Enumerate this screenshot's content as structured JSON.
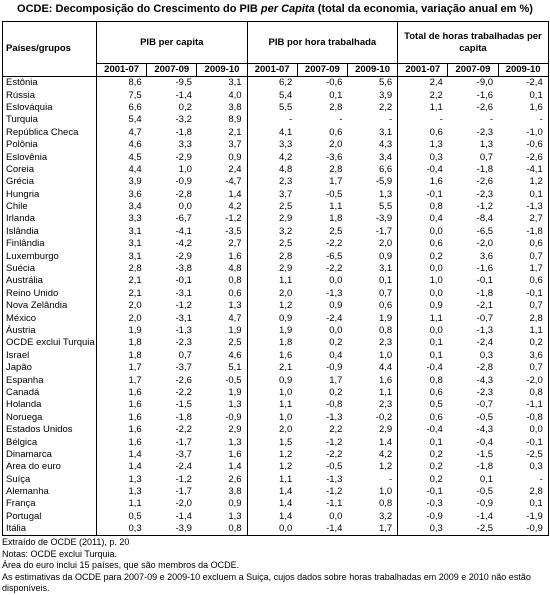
{
  "title": {
    "prefix": "OCDE: Decomposição do Crescimento do PIB",
    "italic": "per Capita",
    "suffix": "(total da economia, variação anual em %)"
  },
  "table": {
    "header": {
      "country": "Países/grupos",
      "groups": [
        "PIB per capita",
        "PIB por hora trabalhada",
        "Total de horas trabalhadas per capita"
      ]
    },
    "subheaders": [
      "2001-07",
      "2007-09",
      "2009-10",
      "2001-07",
      "2007-09",
      "2009-10",
      "2001-07",
      "2007-09",
      "2009-10"
    ],
    "rows": [
      [
        "Estônia",
        "8,6",
        "-9,5",
        "3,1",
        "6,2",
        "-0,6",
        "5,6",
        "2,4",
        "-9,0",
        "-2,4"
      ],
      [
        "Rússia",
        "7,5",
        "-1,4",
        "4,0",
        "5,4",
        "0,1",
        "3,9",
        "2,2",
        "-1,6",
        "0,1"
      ],
      [
        "Eslováquia",
        "6,6",
        "0,2",
        "3,8",
        "5,5",
        "2,8",
        "2,2",
        "1,1",
        "-2,6",
        "1,6"
      ],
      [
        "Turquia",
        "5,4",
        "-3,2",
        "8,9",
        "-",
        "-",
        "-",
        "-",
        "-",
        "-"
      ],
      [
        "República Checa",
        "4,7",
        "-1,8",
        "2,1",
        "4,1",
        "0,6",
        "3,1",
        "0,6",
        "-2,3",
        "-1,0"
      ],
      [
        "Polônia",
        "4,6",
        "3,3",
        "3,7",
        "3,3",
        "2,0",
        "4,3",
        "1,3",
        "1,3",
        "-0,6"
      ],
      [
        "Eslovênia",
        "4,5",
        "-2,9",
        "0,9",
        "4,2",
        "-3,6",
        "3,4",
        "0,3",
        "0,7",
        "-2,6"
      ],
      [
        "Coreia",
        "4,4",
        "1,0",
        "2,4",
        "4,8",
        "2,8",
        "6,6",
        "-0,4",
        "-1,8",
        "-4,1"
      ],
      [
        "Grécia",
        "3,9",
        "-0,9",
        "-4,7",
        "2,3",
        "1,7",
        "-5,9",
        "1,6",
        "-2,6",
        "1,2"
      ],
      [
        "Hungria",
        "3,6",
        "-2,8",
        "1,4",
        "3,7",
        "-0,5",
        "1,3",
        "-0,1",
        "-2,3",
        "0,1"
      ],
      [
        "Chile",
        "3,4",
        "0,0",
        "4,2",
        "2,5",
        "1,1",
        "5,5",
        "0,8",
        "-1,2",
        "-1,3"
      ],
      [
        "Irlanda",
        "3,3",
        "-6,7",
        "-1,2",
        "2,9",
        "1,8",
        "-3,9",
        "0,4",
        "-8,4",
        "2,7"
      ],
      [
        "Islândia",
        "3,1",
        "-4,1",
        "-3,5",
        "3,2",
        "2,5",
        "-1,7",
        "0,0",
        "-6,5",
        "-1,8"
      ],
      [
        "Finlândia",
        "3,1",
        "-4,2",
        "2,7",
        "2,5",
        "-2,2",
        "2,0",
        "0,6",
        "-2,0",
        "0,6"
      ],
      [
        "Luxemburgo",
        "3,1",
        "-2,9",
        "1,6",
        "2,8",
        "-6,5",
        "0,9",
        "0,2",
        "3,6",
        "0,7"
      ],
      [
        "Suécia",
        "2,8",
        "-3,8",
        "4,8",
        "2,9",
        "-2,2",
        "3,1",
        "0,0",
        "-1,6",
        "1,7"
      ],
      [
        "Austrália",
        "2,1",
        "-0,1",
        "0,8",
        "1,1",
        "0,0",
        "0,1",
        "1,0",
        "-0,1",
        "0,6"
      ],
      [
        "Reino Unido",
        "2,1",
        "-3,1",
        "0,6",
        "2,0",
        "-1,3",
        "0,7",
        "0,0",
        "-1,8",
        "-0,1"
      ],
      [
        "Nova Zelândia",
        "2,0",
        "-1,2",
        "1,3",
        "1,2",
        "0,9",
        "0,6",
        "0,9",
        "-2,1",
        "0,7"
      ],
      [
        "México",
        "2,0",
        "-3,1",
        "4,7",
        "0,9",
        "-2,4",
        "1,9",
        "1,1",
        "-0,7",
        "2,8"
      ],
      [
        "Áustria",
        "1,9",
        "-1,3",
        "1,9",
        "1,9",
        "0,0",
        "0,8",
        "0,0",
        "-1,3",
        "1,1"
      ],
      [
        "OCDE exclui Turquia",
        "1,8",
        "-2,3",
        "2,5",
        "1,8",
        "0,2",
        "2,3",
        "0,1",
        "-2,4",
        "0,2"
      ],
      [
        "Israel",
        "1,8",
        "0,7",
        "4,6",
        "1,6",
        "0,4",
        "1,0",
        "0,1",
        "0,3",
        "3,6"
      ],
      [
        "Japão",
        "1,7",
        "-3,7",
        "5,1",
        "2,1",
        "-0,9",
        "4,4",
        "-0,4",
        "-2,8",
        "0,7"
      ],
      [
        "Espanha",
        "1,7",
        "-2,6",
        "-0,5",
        "0,9",
        "1,7",
        "1,6",
        "0,8",
        "-4,3",
        "-2,0"
      ],
      [
        "Canadá",
        "1,6",
        "-2,2",
        "1,9",
        "1,0",
        "0,2",
        "1,1",
        "0,6",
        "-2,3",
        "0,8"
      ],
      [
        "Holanda",
        "1,6",
        "-1,5",
        "1,3",
        "1,1",
        "-0,8",
        "2,3",
        "0,5",
        "-0,7",
        "-1,1"
      ],
      [
        "Noruega",
        "1,6",
        "-1,8",
        "-0,9",
        "1,0",
        "-1,3",
        "-0,2",
        "0,6",
        "-0,5",
        "-0,8"
      ],
      [
        "Estados Unidos",
        "1,6",
        "-2,2",
        "2,9",
        "2,0",
        "2,2",
        "2,9",
        "-0,4",
        "-4,3",
        "0,0"
      ],
      [
        "Bélgica",
        "1,6",
        "-1,7",
        "1,3",
        "1,5",
        "-1,2",
        "1,4",
        "0,1",
        "-0,4",
        "-0,1"
      ],
      [
        "Dinamarca",
        "1,4",
        "-3,7",
        "1,6",
        "1,2",
        "-2,2",
        "4,2",
        "0,2",
        "-1,5",
        "-2,5"
      ],
      [
        "Area do euro",
        "1,4",
        "-2,4",
        "1,4",
        "1,2",
        "-0,5",
        "1,2",
        "0,2",
        "-1,8",
        "0,3"
      ],
      [
        "Suíça",
        "1,3",
        "-1,2",
        "2,6",
        "1,1",
        "-1,3",
        "-",
        "0,2",
        "0,1",
        "-"
      ],
      [
        "Alemanha",
        "1,3",
        "-1,7",
        "3,8",
        "1,4",
        "-1,2",
        "1,0",
        "-0,1",
        "-0,5",
        "2,8"
      ],
      [
        "França",
        "1,1",
        "-2,0",
        "0,9",
        "1,4",
        "-1,1",
        "0,8",
        "-0,3",
        "-0,9",
        "0,1"
      ],
      [
        "Portugal",
        "0,5",
        "-1,4",
        "1,3",
        "1,4",
        "0,0",
        "3,2",
        "-0,9",
        "-1,4",
        "-1,9"
      ],
      [
        "Itália",
        "0,3",
        "-3,9",
        "0,8",
        "0,0",
        "-1,4",
        "1,7",
        "0,3",
        "-2,5",
        "-0,9"
      ]
    ]
  },
  "notes": [
    "Extraído de OCDE (2011), p. 20",
    "Notas: OCDE exclui Turquia.",
    "Área do euro inclui 15 países, que são membros da OCDE.",
    "As estimativas da OCDE para 2007-09 e 2009-10 excluem a Suiça, cujos dados sobre horas trabalhadas em 2009 e 2010 não estão disponíveis."
  ]
}
